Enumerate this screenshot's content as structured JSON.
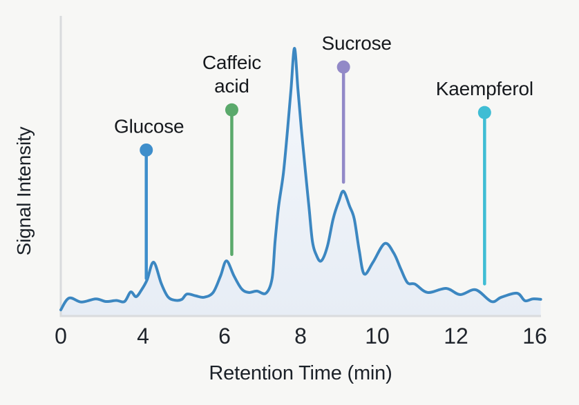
{
  "chart_data": {
    "type": "line",
    "title": "",
    "xlabel": "Retention Time (min)",
    "ylabel": "Signal Intensity",
    "x_ticks": [
      0,
      4,
      6,
      8,
      10,
      12,
      16
    ],
    "x_unit": "min",
    "ylim": [
      0,
      105
    ],
    "grid": false,
    "legend": false,
    "background_color": "#f7f7f5",
    "axis_color": "#d9dbdd",
    "text_color": "#1b2128",
    "trace": {
      "name": "chromatogram-signal",
      "color": "#3c87c1",
      "fill_top": "#f4f7fb",
      "fill_bottom": "#e7edf5",
      "points": [
        [
          0,
          2.3
        ],
        [
          0.4,
          6.7
        ],
        [
          1.0,
          5.2
        ],
        [
          1.7,
          6.4
        ],
        [
          2.2,
          5.4
        ],
        [
          2.7,
          5.8
        ],
        [
          3.1,
          5.4
        ],
        [
          3.4,
          9.0
        ],
        [
          3.66,
          7.2
        ],
        [
          3.93,
          9.8
        ],
        [
          4.1,
          13.5
        ],
        [
          4.26,
          20.1
        ],
        [
          4.45,
          12.0
        ],
        [
          4.61,
          7.2
        ],
        [
          4.78,
          5.9
        ],
        [
          4.95,
          6.2
        ],
        [
          5.08,
          8.2
        ],
        [
          5.3,
          7.5
        ],
        [
          5.5,
          7.0
        ],
        [
          5.72,
          8.8
        ],
        [
          5.9,
          14.9
        ],
        [
          6.05,
          20.6
        ],
        [
          6.25,
          14.9
        ],
        [
          6.45,
          10.1
        ],
        [
          6.64,
          8.8
        ],
        [
          6.85,
          9.3
        ],
        [
          7.09,
          8.5
        ],
        [
          7.25,
          14.0
        ],
        [
          7.33,
          27.8
        ],
        [
          7.42,
          40.7
        ],
        [
          7.55,
          53.6
        ],
        [
          7.66,
          70.0
        ],
        [
          7.75,
          85.0
        ],
        [
          7.84,
          100.0
        ],
        [
          7.93,
          85.0
        ],
        [
          8.02,
          70.0
        ],
        [
          8.13,
          53.6
        ],
        [
          8.22,
          40.7
        ],
        [
          8.31,
          27.8
        ],
        [
          8.42,
          22.5
        ],
        [
          8.54,
          20.6
        ],
        [
          8.7,
          26.0
        ],
        [
          8.85,
          36.3
        ],
        [
          9.0,
          43.0
        ],
        [
          9.12,
          46.6
        ],
        [
          9.28,
          41.0
        ],
        [
          9.4,
          36.3
        ],
        [
          9.53,
          24.5
        ],
        [
          9.66,
          15.7
        ],
        [
          9.89,
          20.1
        ],
        [
          10.19,
          27.1
        ],
        [
          10.42,
          23.5
        ],
        [
          10.6,
          17.5
        ],
        [
          10.77,
          12.4
        ],
        [
          10.96,
          11.9
        ],
        [
          11.28,
          8.8
        ],
        [
          11.75,
          10.3
        ],
        [
          12.21,
          8.0
        ],
        [
          13.0,
          9.8
        ],
        [
          13.8,
          5.4
        ],
        [
          14.3,
          7.0
        ],
        [
          15.1,
          8.5
        ],
        [
          15.5,
          5.7
        ],
        [
          15.9,
          6.4
        ],
        [
          16.3,
          6.2
        ]
      ]
    },
    "peaks": [
      {
        "time": 4.26,
        "intensity": 20,
        "label": "Glucose"
      },
      {
        "time": 6.05,
        "intensity": 21,
        "label": "Caffeic acid"
      },
      {
        "time": 7.84,
        "intensity": 100,
        "label": ""
      },
      {
        "time": 9.12,
        "intensity": 47,
        "label": "Sucrose"
      },
      {
        "time": 10.19,
        "intensity": 27,
        "label": ""
      },
      {
        "time": 13.0,
        "intensity": 10,
        "label": "Kaempferol"
      }
    ],
    "annotations": [
      {
        "id": "glucose",
        "lines": [
          "Glucose"
        ],
        "time": 4.08,
        "color": "#3e8ecb",
        "dot_intensity": 62,
        "stem_bottom_intensity": 14,
        "label_dx": 4
      },
      {
        "id": "caffeic-acid",
        "lines": [
          "Caffeic",
          "acid"
        ],
        "time": 6.19,
        "color": "#5aa96b",
        "dot_intensity": 77,
        "stem_bottom_intensity": 23,
        "label_dx": 0
      },
      {
        "id": "sucrose",
        "lines": [
          "Sucrose"
        ],
        "time": 9.12,
        "color": "#9289c7",
        "dot_intensity": 93,
        "stem_bottom_intensity": 50,
        "label_dx": 19
      },
      {
        "id": "kaempferol",
        "lines": [
          "Kaempferol"
        ],
        "time": 13.45,
        "color": "#3fbdd4",
        "dot_intensity": 76,
        "stem_bottom_intensity": 12,
        "label_dx": 0
      }
    ]
  }
}
